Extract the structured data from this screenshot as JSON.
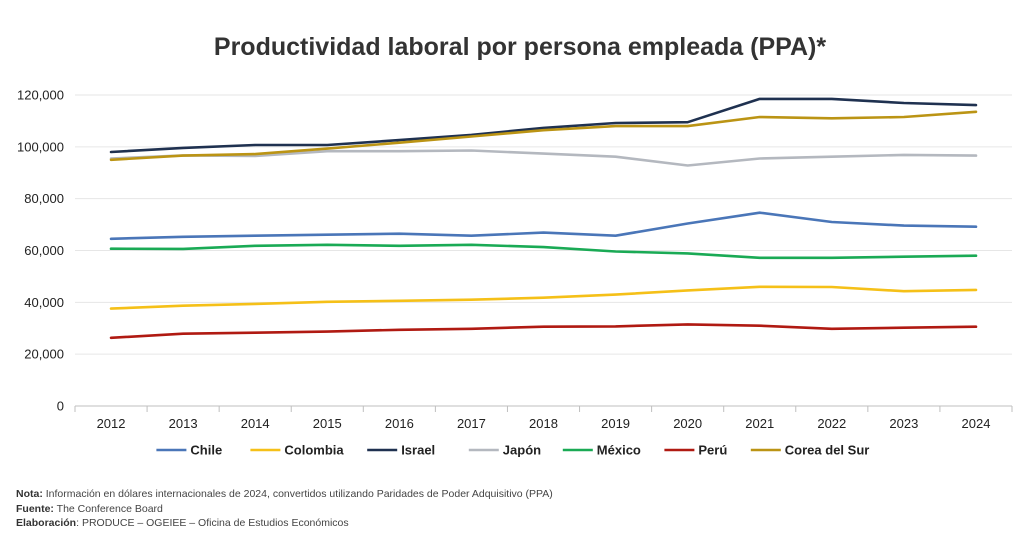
{
  "chart_data": {
    "type": "line",
    "title": "Productividad laboral por persona empleada (PPA)*",
    "x": [
      "2012",
      "2013",
      "2014",
      "2015",
      "2016",
      "2017",
      "2018",
      "2019",
      "2020",
      "2021",
      "2022",
      "2023",
      "2024"
    ],
    "ylim": [
      0,
      120000
    ],
    "y_ticks": [
      0,
      20000,
      40000,
      60000,
      80000,
      100000,
      120000
    ],
    "y_tick_labels": [
      "0",
      "20,000",
      "40,000",
      "60,000",
      "80,000",
      "100,000",
      "120,000"
    ],
    "grid": true,
    "legend_position": "bottom",
    "series": [
      {
        "name": "Chile",
        "color": "#4a76b8",
        "values": [
          64500,
          65300,
          65700,
          66100,
          66500,
          65700,
          66900,
          65700,
          70400,
          74600,
          71000,
          69600,
          69200
        ]
      },
      {
        "name": "Colombia",
        "color": "#f5c018",
        "values": [
          37600,
          38700,
          39400,
          40200,
          40600,
          41000,
          41800,
          43000,
          44600,
          46000,
          45900,
          44300,
          44800
        ]
      },
      {
        "name": "Israel",
        "color": "#1f3150",
        "values": [
          98000,
          99600,
          100700,
          100700,
          102600,
          104600,
          107300,
          109200,
          109500,
          118500,
          118500,
          116900,
          116100
        ]
      },
      {
        "name": "Japón",
        "color": "#b4b8bf",
        "values": [
          95500,
          96700,
          96500,
          98300,
          98300,
          98600,
          97400,
          96200,
          92800,
          95500,
          96200,
          96900,
          96600
        ]
      },
      {
        "name": "México",
        "color": "#1aaa55",
        "values": [
          60700,
          60600,
          61800,
          62200,
          61800,
          62200,
          61300,
          59600,
          58900,
          57200,
          57200,
          57600,
          58000
        ]
      },
      {
        "name": "Perú",
        "color": "#b01a12",
        "values": [
          26300,
          27900,
          28300,
          28700,
          29400,
          29800,
          30600,
          30700,
          31500,
          31000,
          29800,
          30200,
          30600
        ]
      },
      {
        "name": "Corea del Sur",
        "color": "#bb9414",
        "values": [
          95000,
          96600,
          97200,
          99300,
          101600,
          104000,
          106400,
          108000,
          108000,
          111500,
          111000,
          111500,
          113500
        ]
      }
    ]
  },
  "notes": {
    "nota_label": "Nota:",
    "nota_text": " Información en dólares internacionales de 2024, convertidos utilizando Paridades de Poder Adquisitivo (PPA)",
    "fuente_label": "Fuente:",
    "fuente_text": " The Conference Board",
    "elaboracion_label": "Elaboración",
    "elaboracion_text": ": PRODUCE – OGEIEE – Oficina de Estudios Económicos"
  }
}
